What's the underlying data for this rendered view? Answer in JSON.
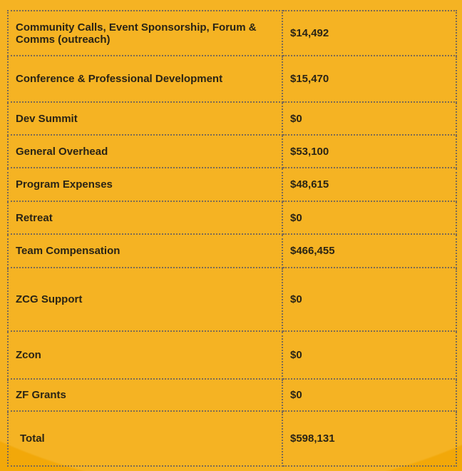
{
  "rows": [
    {
      "label": "Community Calls, Event Sponsorship, Forum & Comms (outreach)",
      "value": "$14,492"
    },
    {
      "label": "Conference & Professional Development",
      "value": "$15,470"
    },
    {
      "label": "Dev Summit",
      "value": "$0"
    },
    {
      "label": "General Overhead",
      "value": "$53,100"
    },
    {
      "label": "Program Expenses",
      "value": "$48,615"
    },
    {
      "label": "Retreat",
      "value": "$0"
    },
    {
      "label": "Team Compensation",
      "value": "$466,455"
    },
    {
      "label": "ZCG Support",
      "value": "$0"
    },
    {
      "label": "Zcon",
      "value": "$0"
    },
    {
      "label": "ZF Grants",
      "value": "$0"
    }
  ],
  "total": {
    "label": "Total",
    "value": "$598,131"
  },
  "colors": {
    "background": "#f2a809",
    "highlight": "#f5b323",
    "text": "#2a2416",
    "border": "#7a6a55"
  }
}
